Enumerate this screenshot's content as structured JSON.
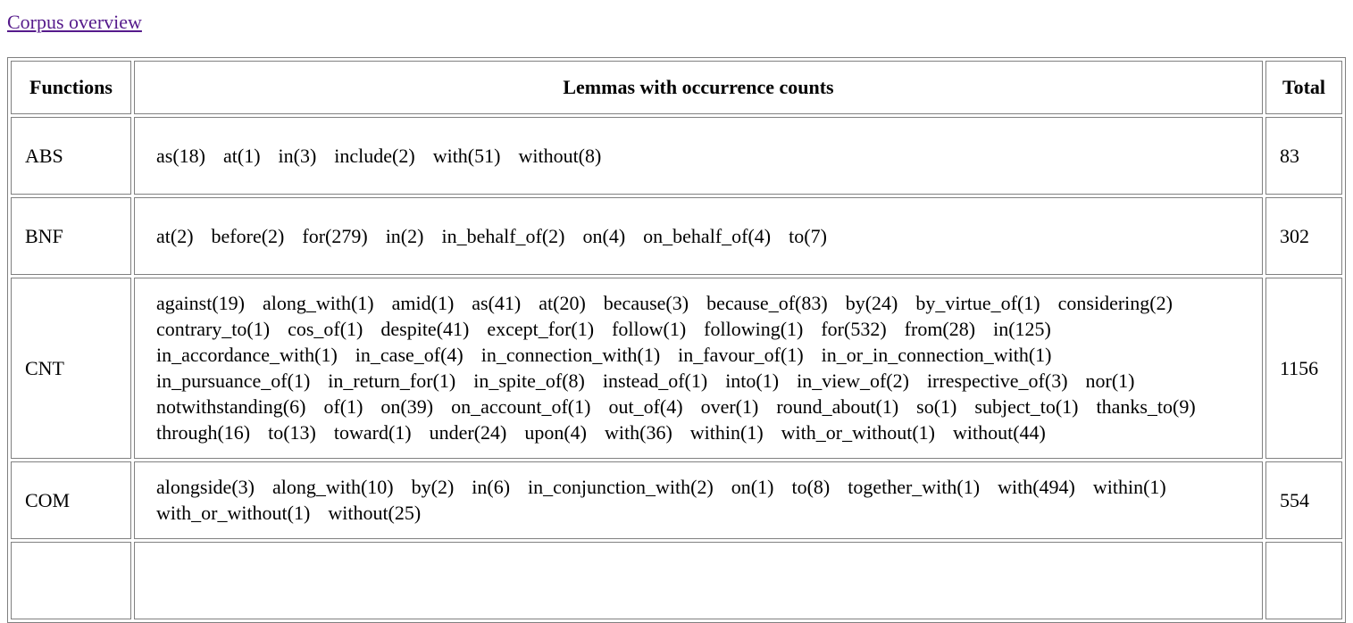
{
  "nav": {
    "corpus_overview_link": "Corpus overview"
  },
  "table": {
    "headers": {
      "functions": "Functions",
      "lemmas": "Lemmas with occurrence counts",
      "total": "Total"
    },
    "rows": [
      {
        "function": "ABS",
        "lemmas": [
          "as(18)",
          "at(1)",
          "in(3)",
          "include(2)",
          "with(51)",
          "without(8)"
        ],
        "total": "83"
      },
      {
        "function": "BNF",
        "lemmas": [
          "at(2)",
          "before(2)",
          "for(279)",
          "in(2)",
          "in_behalf_of(2)",
          "on(4)",
          "on_behalf_of(4)",
          "to(7)"
        ],
        "total": "302"
      },
      {
        "function": "CNT",
        "lemmas": [
          "against(19)",
          "along_with(1)",
          "amid(1)",
          "as(41)",
          "at(20)",
          "because(3)",
          "because_of(83)",
          "by(24)",
          "by_virtue_of(1)",
          "considering(2)",
          "contrary_to(1)",
          "cos_of(1)",
          "despite(41)",
          "except_for(1)",
          "follow(1)",
          "following(1)",
          "for(532)",
          "from(28)",
          "in(125)",
          "in_accordance_with(1)",
          "in_case_of(4)",
          "in_connection_with(1)",
          "in_favour_of(1)",
          "in_or_in_connection_with(1)",
          "in_pursuance_of(1)",
          "in_return_for(1)",
          "in_spite_of(8)",
          "instead_of(1)",
          "into(1)",
          "in_view_of(2)",
          "irrespective_of(3)",
          "nor(1)",
          "notwithstanding(6)",
          "of(1)",
          "on(39)",
          "on_account_of(1)",
          "out_of(4)",
          "over(1)",
          "round_about(1)",
          "so(1)",
          "subject_to(1)",
          "thanks_to(9)",
          "through(16)",
          "to(13)",
          "toward(1)",
          "under(24)",
          "upon(4)",
          "with(36)",
          "within(1)",
          "with_or_without(1)",
          "without(44)"
        ],
        "total": "1156"
      },
      {
        "function": "COM",
        "lemmas": [
          "alongside(3)",
          "along_with(10)",
          "by(2)",
          "in(6)",
          "in_conjunction_with(2)",
          "on(1)",
          "to(8)",
          "together_with(1)",
          "with(494)",
          "within(1)",
          "with_or_without(1)",
          "without(25)"
        ],
        "total": "554"
      }
    ]
  }
}
